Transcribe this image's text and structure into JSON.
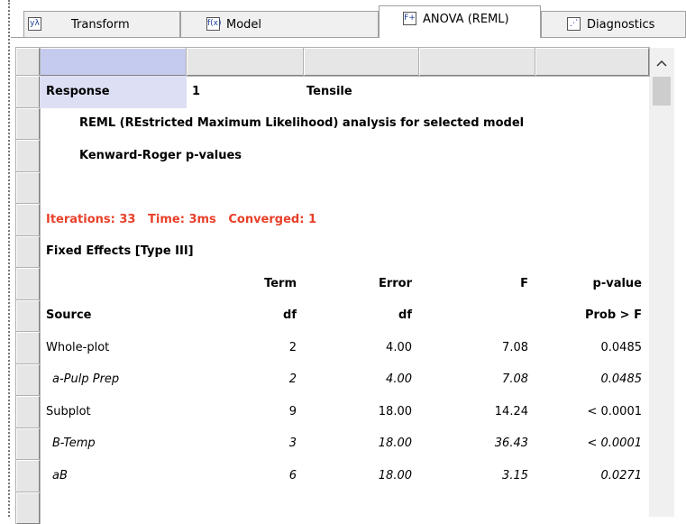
{
  "tabs": [
    "Transform",
    "Model",
    "ANOVA (REML)",
    "Diagnostics"
  ],
  "response": {
    "label": "Response",
    "number": "1",
    "name": "Tensile"
  },
  "notes": [
    "REML (REstricted Maximum Likelihood) analysis for selected model",
    "Kenward-Roger p-values"
  ],
  "status": "Iterations: 33   Time: 3ms   Converged: 1",
  "section": "Fixed Effects [Type III]",
  "table": {
    "header1": {
      "term": "Term",
      "error": "Error",
      "f": "F",
      "p": "p-value"
    },
    "header2": {
      "source": "Source",
      "term": "df",
      "error": "df",
      "p": "Prob > F"
    },
    "rows": [
      {
        "source": "Whole-plot",
        "df": "2",
        "error": "4.00",
        "f": "7.08",
        "p": "0.0485",
        "sub": false
      },
      {
        "source": "a-Pulp Prep",
        "df": "2",
        "error": "4.00",
        "f": "7.08",
        "p": "0.0485",
        "sub": true
      },
      {
        "source": "Subplot",
        "df": "9",
        "error": "18.00",
        "f": "14.24",
        "p": "< 0.0001",
        "sub": false
      },
      {
        "source": "B-Temp",
        "df": "3",
        "error": "18.00",
        "f": "36.43",
        "p": "< 0.0001",
        "sub": true
      },
      {
        "source": "aB",
        "df": "6",
        "error": "18.00",
        "f": "3.15",
        "p": "0.0271",
        "sub": true
      }
    ]
  }
}
